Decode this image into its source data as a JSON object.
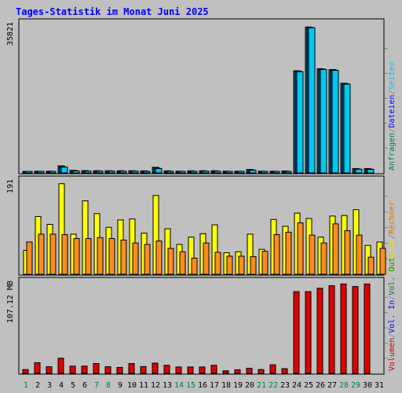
{
  "chart_data": {
    "type": "bar",
    "title": "Tages-Statistik im Monat Juni 2025",
    "categories": [
      "1",
      "2",
      "3",
      "4",
      "5",
      "6",
      "7",
      "8",
      "9",
      "10",
      "11",
      "12",
      "13",
      "14",
      "15",
      "16",
      "17",
      "18",
      "19",
      "20",
      "21",
      "22",
      "23",
      "24",
      "25",
      "26",
      "27",
      "28",
      "29",
      "30",
      "31"
    ],
    "weekend_days": [
      1,
      7,
      8,
      14,
      15,
      21,
      22,
      28,
      29
    ],
    "panels": [
      {
        "name": "requests",
        "ymax_label": "35821",
        "right_labels": [
          {
            "text": "Anfragen",
            "color": "#008040"
          },
          {
            "text": "/",
            "color": "#808080"
          },
          {
            "text": "Dateien",
            "color": "#0000ff"
          },
          {
            "text": "/",
            "color": "#808080"
          },
          {
            "text": "Seiten",
            "color": "#00c0ff"
          }
        ],
        "ymax": 35821,
        "series": [
          {
            "name": "Anfragen",
            "color": "#00707a",
            "values": [
              320,
              420,
              420,
              1700,
              620,
              550,
              520,
              520,
              520,
              520,
              500,
              1350,
              500,
              420,
              500,
              520,
              520,
              420,
              420,
              820,
              420,
              420,
              470,
              24500,
              35000,
              25000,
              24800,
              21500,
              1050,
              1050,
              0
            ]
          },
          {
            "name": "Dateien",
            "color": "#1450c8",
            "values": [
              250,
              350,
              350,
              1450,
              520,
              470,
              450,
              450,
              450,
              450,
              420,
              1150,
              420,
              350,
              420,
              450,
              450,
              350,
              350,
              720,
              350,
              350,
              400,
              24400,
              34900,
              24900,
              24700,
              21400,
              950,
              950,
              0
            ]
          },
          {
            "name": "Seiten",
            "color": "#00c8f0",
            "values": [
              200,
              300,
              300,
              1400,
              480,
              420,
              420,
              420,
              420,
              420,
              380,
              1050,
              380,
              300,
              380,
              420,
              420,
              300,
              300,
              650,
              300,
              300,
              350,
              24300,
              34800,
              24800,
              24600,
              21300,
              900,
              850,
              0
            ]
          }
        ]
      },
      {
        "name": "visits",
        "ymax_label": "191",
        "right_labels": [
          {
            "text": "Besuche",
            "color": "#f0e000"
          },
          {
            "text": "/",
            "color": "#808080"
          },
          {
            "text": "Rechner",
            "color": "#e07000"
          }
        ],
        "ymax": 191,
        "series": [
          {
            "name": "Besuche",
            "color": "#ffff00",
            "values": [
              49,
              118,
              102,
              185,
              82,
              150,
              124,
              96,
              111,
              113,
              84,
              161,
              93,
              61,
              76,
              83,
              101,
              44,
              46,
              82,
              51,
              112,
              98,
              125,
              114,
              76,
              119,
              120,
              132,
              59,
              66
            ]
          },
          {
            "name": "Rechner",
            "color": "#ff8c1e",
            "values": [
              66,
              82,
              82,
              81,
              73,
              73,
              75,
              73,
              70,
              64,
              61,
              68,
              53,
              46,
              33,
              64,
              45,
              37,
              37,
              36,
              47,
              81,
              86,
              105,
              80,
              64,
              103,
              89,
              80,
              35,
              53
            ]
          }
        ]
      },
      {
        "name": "volume",
        "ymax_label": "107.12 MB",
        "right_labels": [
          {
            "text": "Volumen",
            "color": "#e00000"
          },
          {
            "text": "/",
            "color": "#808080"
          },
          {
            "text": "Vol. In",
            "color": "#0000ff"
          },
          {
            "text": "/",
            "color": "#808080"
          },
          {
            "text": "Vol. Out",
            "color": "#008040"
          }
        ],
        "ymax": 107.12,
        "series": [
          {
            "name": "Volumen",
            "color": "#e00000",
            "values": [
              4.5,
              12.5,
              7.8,
              17.8,
              8.5,
              8.5,
              11.5,
              7.8,
              7.0,
              11.5,
              8.0,
              12.0,
              9.5,
              7.5,
              7.5,
              7.5,
              9.5,
              3.0,
              4.2,
              6.0,
              4.5,
              10.0,
              5.5,
              96.0,
              96.0,
              100.0,
              103.0,
              105.0,
              102.0,
              105.0,
              0
            ]
          }
        ]
      }
    ],
    "colors": {
      "frame": "#000000",
      "title": "#0000ff",
      "background": "#c0c0c0",
      "gridline": "#008040"
    }
  }
}
